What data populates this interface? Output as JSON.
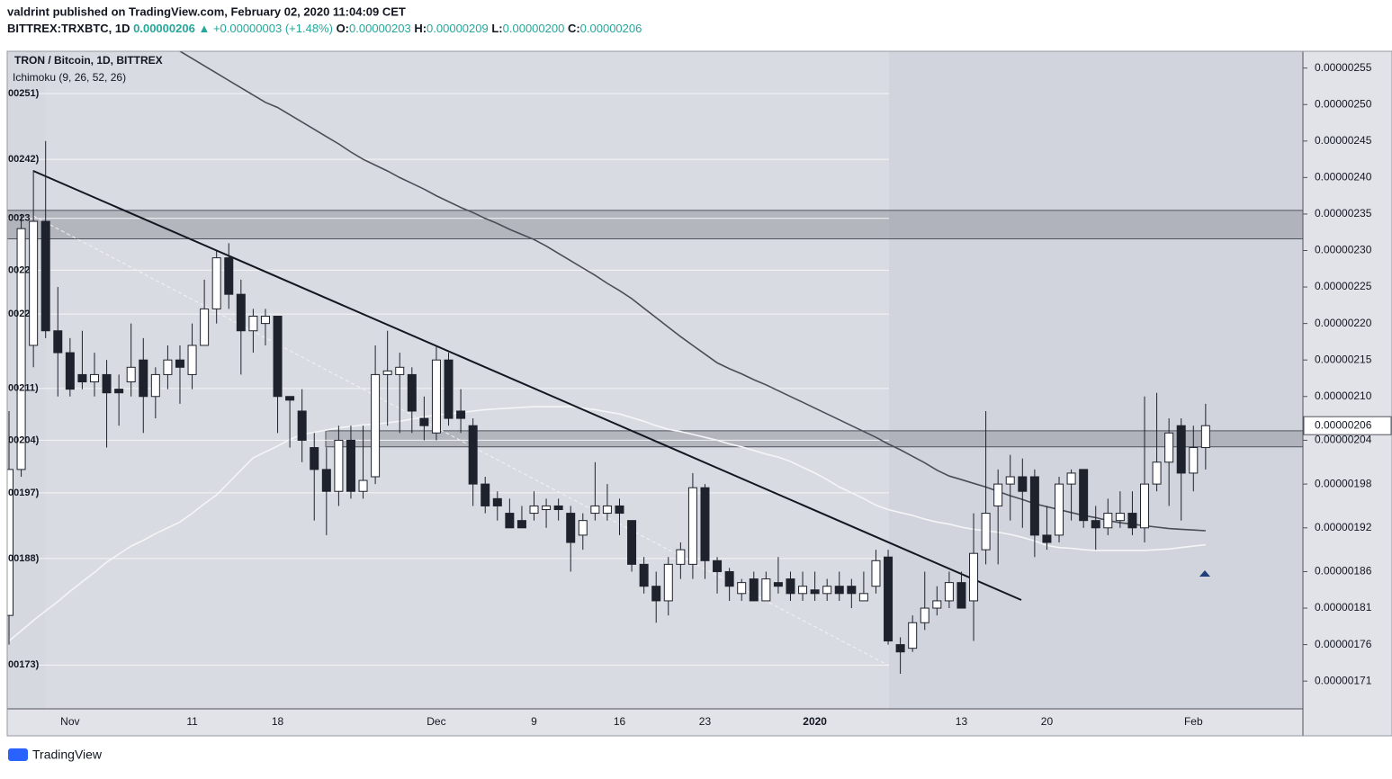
{
  "header": {
    "publisher": "valdrint published on TradingView.com, February 02, 2020 11:04:09 CET",
    "symbol": "BITTREX:TRXBTC, 1D",
    "last": "0.00000206",
    "arrow": "▲",
    "change": "+0.00000003 (+1.48%)",
    "open_label": "O:",
    "open": "0.00000203",
    "high_label": "H:",
    "high": "0.00000209",
    "low_label": "L:",
    "low": "0.00000200",
    "close_label": "C:",
    "close": "0.00000206"
  },
  "footer": {
    "brand": "TradingView"
  },
  "chart_data": {
    "type": "candlestick",
    "title": "TRON / Bitcoin, 1D, BITTREX",
    "subtitle": "Ichimoku (9, 26, 52, 26)",
    "categories": [
      null,
      null,
      null,
      null,
      null,
      "Nov",
      null,
      null,
      null,
      null,
      null,
      null,
      null,
      null,
      null,
      "11",
      null,
      null,
      null,
      null,
      null,
      null,
      "18",
      null,
      null,
      null,
      null,
      null,
      null,
      null,
      null,
      null,
      null,
      null,
      null,
      "Dec",
      null,
      null,
      null,
      null,
      null,
      null,
      null,
      "9",
      null,
      null,
      null,
      null,
      null,
      null,
      "16",
      null,
      null,
      null,
      null,
      null,
      null,
      "23",
      null,
      null,
      null,
      null,
      null,
      null,
      null,
      null,
      "2020",
      null,
      null,
      null,
      null,
      null,
      null,
      null,
      null,
      null,
      null,
      null,
      "13",
      null,
      null,
      null,
      null,
      null,
      null,
      "20",
      null,
      null,
      null,
      null,
      null,
      null,
      null,
      null,
      null,
      null,
      null,
      "Feb",
      null
    ],
    "open": [
      1.8e-06,
      2e-06,
      2.17e-06,
      2.34e-06,
      2.19e-06,
      2.16e-06,
      2.13e-06,
      2.12e-06,
      2.13e-06,
      2.11e-06,
      2.12e-06,
      2.15e-06,
      2.1e-06,
      2.13e-06,
      2.15e-06,
      2.13e-06,
      2.17e-06,
      2.22e-06,
      2.29e-06,
      2.24e-06,
      2.19e-06,
      2.2e-06,
      2.21e-06,
      2.1e-06,
      2.08e-06,
      2.03e-06,
      2e-06,
      1.97e-06,
      2.04e-06,
      1.97e-06,
      1.99e-06,
      2.13e-06,
      2.13e-06,
      2.13e-06,
      2.07e-06,
      2.05e-06,
      2.15e-06,
      2.08e-06,
      2.06e-06,
      1.98e-06,
      1.96e-06,
      1.94e-06,
      1.93e-06,
      1.94e-06,
      1.945e-06,
      1.95e-06,
      1.94e-06,
      1.91e-06,
      1.94e-06,
      1.94e-06,
      1.95e-06,
      1.93e-06,
      1.87e-06,
      1.84e-06,
      1.82e-06,
      1.87e-06,
      1.87e-06,
      1.975e-06,
      1.875e-06,
      1.86e-06,
      1.83e-06,
      1.85e-06,
      1.82e-06,
      1.845e-06,
      1.85e-06,
      1.83e-06,
      1.835e-06,
      1.83e-06,
      1.84e-06,
      1.84e-06,
      1.82e-06,
      1.84e-06,
      1.88e-06,
      1.76e-06,
      1.755e-06,
      1.79e-06,
      1.81e-06,
      1.82e-06,
      1.845e-06,
      1.82e-06,
      1.89e-06,
      1.95e-06,
      1.98e-06,
      1.99e-06,
      1.99e-06,
      1.91e-06,
      1.91e-06,
      1.98e-06,
      2e-06,
      1.93e-06,
      1.92e-06,
      1.93e-06,
      1.94e-06,
      1.92e-06,
      1.98e-06,
      2.01e-06,
      2.06e-06,
      1.995e-06,
      2.03e-06
    ],
    "high": [
      2.08e-06,
      2.35e-06,
      2.41e-06,
      2.45e-06,
      2.25e-06,
      2.18e-06,
      2.19e-06,
      2.16e-06,
      2.15e-06,
      2.13e-06,
      2.2e-06,
      2.18e-06,
      2.14e-06,
      2.17e-06,
      2.17e-06,
      2.2e-06,
      2.26e-06,
      2.3e-06,
      2.31e-06,
      2.26e-06,
      2.22e-06,
      2.22e-06,
      2.21e-06,
      2.1e-06,
      2.11e-06,
      2.05e-06,
      2.03e-06,
      2.06e-06,
      2.06e-06,
      2.06e-06,
      2.17e-06,
      2.19e-06,
      2.16e-06,
      2.14e-06,
      2.1e-06,
      2.17e-06,
      2.16e-06,
      2.11e-06,
      2.07e-06,
      1.99e-06,
      1.97e-06,
      1.96e-06,
      1.95e-06,
      1.97e-06,
      1.96e-06,
      1.96e-06,
      1.95e-06,
      1.94e-06,
      2.01e-06,
      1.98e-06,
      1.96e-06,
      1.93e-06,
      1.88e-06,
      1.86e-06,
      1.88e-06,
      1.9e-06,
      1.995e-06,
      1.98e-06,
      1.88e-06,
      1.865e-06,
      1.85e-06,
      1.86e-06,
      1.86e-06,
      1.88e-06,
      1.86e-06,
      1.86e-06,
      1.86e-06,
      1.85e-06,
      1.86e-06,
      1.85e-06,
      1.86e-06,
      1.89e-06,
      1.89e-06,
      1.77e-06,
      1.8e-06,
      1.86e-06,
      1.84e-06,
      1.86e-06,
      1.86e-06,
      1.94e-06,
      2.08e-06,
      2e-06,
      2.02e-06,
      2.015e-06,
      2e-06,
      1.95e-06,
      1.99e-06,
      2e-06,
      2e-06,
      1.95e-06,
      1.96e-06,
      1.97e-06,
      1.97e-06,
      2.1e-06,
      2.105e-06,
      2.07e-06,
      2.07e-06,
      2.06e-06,
      2.09e-06
    ],
    "low": [
      1.76e-06,
      1.99e-06,
      2.14e-06,
      2.18e-06,
      2.1e-06,
      2.1e-06,
      2.11e-06,
      2.1e-06,
      2.03e-06,
      2.06e-06,
      2.1e-06,
      2.05e-06,
      2.07e-06,
      2.11e-06,
      2.09e-06,
      2.11e-06,
      2.17e-06,
      2.2e-06,
      2.22e-06,
      2.13e-06,
      2.16e-06,
      2.17e-06,
      2.05e-06,
      2.03e-06,
      2.01e-06,
      1.93e-06,
      1.91e-06,
      1.95e-06,
      1.96e-06,
      1.96e-06,
      1.98e-06,
      2.06e-06,
      2.05e-06,
      2.05e-06,
      2.04e-06,
      2.04e-06,
      2.06e-06,
      2.05e-06,
      1.95e-06,
      1.94e-06,
      1.93e-06,
      1.92e-06,
      1.92e-06,
      1.93e-06,
      1.92e-06,
      1.93e-06,
      1.86e-06,
      1.89e-06,
      1.93e-06,
      1.93e-06,
      1.91e-06,
      1.86e-06,
      1.83e-06,
      1.79e-06,
      1.8e-06,
      1.85e-06,
      1.85e-06,
      1.85e-06,
      1.83e-06,
      1.82e-06,
      1.82e-06,
      1.82e-06,
      1.82e-06,
      1.83e-06,
      1.82e-06,
      1.82e-06,
      1.82e-06,
      1.82e-06,
      1.82e-06,
      1.81e-06,
      1.82e-06,
      1.83e-06,
      1.76e-06,
      1.72e-06,
      1.75e-06,
      1.78e-06,
      1.8e-06,
      1.81e-06,
      1.81e-06,
      1.765e-06,
      1.87e-06,
      1.87e-06,
      1.93e-06,
      1.92e-06,
      1.88e-06,
      1.89e-06,
      1.9e-06,
      1.93e-06,
      1.92e-06,
      1.89e-06,
      1.91e-06,
      1.92e-06,
      1.91e-06,
      1.9e-06,
      1.97e-06,
      1.95e-06,
      1.93e-06,
      1.97e-06,
      2e-06
    ],
    "close": [
      2e-06,
      2.33e-06,
      2.34e-06,
      2.19e-06,
      2.16e-06,
      2.11e-06,
      2.12e-06,
      2.13e-06,
      2.105e-06,
      2.105e-06,
      2.14e-06,
      2.1e-06,
      2.13e-06,
      2.15e-06,
      2.14e-06,
      2.17e-06,
      2.22e-06,
      2.29e-06,
      2.24e-06,
      2.19e-06,
      2.21e-06,
      2.21e-06,
      2.1e-06,
      2.095e-06,
      2.04e-06,
      2e-06,
      1.97e-06,
      2.04e-06,
      1.97e-06,
      1.985e-06,
      2.13e-06,
      2.135e-06,
      2.14e-06,
      2.08e-06,
      2.06e-06,
      2.15e-06,
      2.07e-06,
      2.07e-06,
      1.98e-06,
      1.95e-06,
      1.95e-06,
      1.92e-06,
      1.92e-06,
      1.95e-06,
      1.95e-06,
      1.945e-06,
      1.9e-06,
      1.93e-06,
      1.95e-06,
      1.95e-06,
      1.94e-06,
      1.87e-06,
      1.84e-06,
      1.82e-06,
      1.87e-06,
      1.89e-06,
      1.975e-06,
      1.875e-06,
      1.86e-06,
      1.84e-06,
      1.845e-06,
      1.82e-06,
      1.85e-06,
      1.84e-06,
      1.83e-06,
      1.84e-06,
      1.83e-06,
      1.84e-06,
      1.83e-06,
      1.83e-06,
      1.83e-06,
      1.875e-06,
      1.765e-06,
      1.75e-06,
      1.79e-06,
      1.81e-06,
      1.82e-06,
      1.845e-06,
      1.81e-06,
      1.885e-06,
      1.94e-06,
      1.98e-06,
      1.99e-06,
      1.97e-06,
      1.91e-06,
      1.9e-06,
      1.98e-06,
      1.995e-06,
      1.93e-06,
      1.92e-06,
      1.94e-06,
      1.94e-06,
      1.92e-06,
      1.98e-06,
      2.01e-06,
      2.05e-06,
      1.995e-06,
      2.03e-06,
      2.06e-06
    ],
    "up_color": "#ffffff",
    "down_color": "#1e222d",
    "ma_lines": [
      {
        "color": "#4a4d55",
        "values": [
          null,
          null,
          null,
          null,
          null,
          null,
          null,
          null,
          null,
          null,
          null,
          null,
          null,
          null,
          2.573e-06,
          2.563e-06,
          2.553e-06,
          2.543e-06,
          2.533e-06,
          2.523e-06,
          2.513e-06,
          2.503e-06,
          2.496e-06,
          2.486e-06,
          2.476e-06,
          2.466e-06,
          2.456e-06,
          2.446e-06,
          2.435e-06,
          2.425e-06,
          2.417e-06,
          2.409e-06,
          2.4e-06,
          2.392e-06,
          2.384e-06,
          2.375e-06,
          2.367e-06,
          2.359e-06,
          2.352e-06,
          2.344e-06,
          2.337e-06,
          2.329e-06,
          2.322e-06,
          2.315e-06,
          2.306e-06,
          2.296e-06,
          2.286e-06,
          2.276e-06,
          2.266e-06,
          2.255e-06,
          2.245e-06,
          2.234e-06,
          2.221e-06,
          2.208e-06,
          2.195e-06,
          2.182e-06,
          2.17e-06,
          2.158e-06,
          2.146e-06,
          2.138e-06,
          2.131e-06,
          2.123e-06,
          2.116e-06,
          2.108e-06,
          2.1e-06,
          2.092e-06,
          2.084e-06,
          2.076e-06,
          2.068e-06,
          2.06e-06,
          2.052e-06,
          2.044e-06,
          2.035e-06,
          2.027e-06,
          2.018e-06,
          2.009e-06,
          1.999e-06,
          1.991e-06,
          1.986e-06,
          1.981e-06,
          1.976e-06,
          1.97e-06,
          1.964e-06,
          1.959e-06,
          1.953e-06,
          1.949e-06,
          1.945e-06,
          1.941e-06,
          1.937e-06,
          1.934e-06,
          1.93e-06,
          1.927e-06,
          1.925e-06,
          1.923e-06,
          1.921e-06,
          1.919e-06,
          1.918e-06,
          1.917e-06,
          1.916e-06
        ]
      },
      {
        "color": "#f4f5f7",
        "values": [
          1.765e-06,
          1.779e-06,
          1.793e-06,
          1.806e-06,
          1.819e-06,
          1.833e-06,
          1.846e-06,
          1.859e-06,
          1.873e-06,
          1.884e-06,
          1.895e-06,
          1.903e-06,
          1.912e-06,
          1.92e-06,
          1.928e-06,
          1.94e-06,
          1.953e-06,
          1.965e-06,
          1.982e-06,
          1.999e-06,
          2.016e-06,
          2.024e-06,
          2.032e-06,
          2.041e-06,
          2.048e-06,
          2.051e-06,
          2.054e-06,
          2.057e-06,
          2.059e-06,
          2.061e-06,
          2.062e-06,
          2.064e-06,
          2.066e-06,
          2.069e-06,
          2.072e-06,
          2.075e-06,
          2.076e-06,
          2.078e-06,
          2.08e-06,
          2.082e-06,
          2.083e-06,
          2.084e-06,
          2.085e-06,
          2.086e-06,
          2.086e-06,
          2.086e-06,
          2.086e-06,
          2.084e-06,
          2.082e-06,
          2.079e-06,
          2.076e-06,
          2.071e-06,
          2.066e-06,
          2.06e-06,
          2.055e-06,
          2.052e-06,
          2.048e-06,
          2.044e-06,
          2.04e-06,
          2.035e-06,
          2.031e-06,
          2.026e-06,
          2.021e-06,
          2.017e-06,
          2.011e-06,
          2.003e-06,
          1.995e-06,
          1.986e-06,
          1.976e-06,
          1.968e-06,
          1.96e-06,
          1.951e-06,
          1.945e-06,
          1.941e-06,
          1.937e-06,
          1.932e-06,
          1.928e-06,
          1.925e-06,
          1.921e-06,
          1.918e-06,
          1.916e-06,
          1.914e-06,
          1.911e-06,
          1.907e-06,
          1.902e-06,
          1.896e-06,
          1.893e-06,
          1.892e-06,
          1.89e-06,
          1.889e-06,
          1.889e-06,
          1.889e-06,
          1.889e-06,
          1.889e-06,
          1.89e-06,
          1.891e-06,
          1.893e-06,
          1.895e-06,
          1.897e-06
        ]
      }
    ],
    "zones": [
      {
        "low": 2.316e-06,
        "high": 2.355e-06
      },
      {
        "low": 2.031e-06,
        "high": 2.053e-06
      }
    ],
    "levels": [
      {
        "value": 2.515e-06,
        "label": "00251)"
      },
      {
        "value": 2.425e-06,
        "label": "00242)"
      },
      {
        "value": 2.344e-06,
        "label": "0023"
      },
      {
        "value": 2.273e-06,
        "label": "0022"
      },
      {
        "value": 2.213e-06,
        "label": "0022"
      },
      {
        "value": 2.111e-06,
        "label": "00211)"
      },
      {
        "value": 2.04e-06,
        "label": "00204)"
      },
      {
        "value": 1.968e-06,
        "label": "00197)"
      },
      {
        "value": 1.878e-06,
        "label": "00188)"
      },
      {
        "value": 1.732e-06,
        "label": "00173)"
      }
    ],
    "last_price": {
      "value": 2.06e-06,
      "label": "0.00000206"
    },
    "ylim": [
      1.672e-06,
      2.573e-06
    ],
    "yticks": [
      {
        "value": 2.55e-06,
        "label": "0.00000255"
      },
      {
        "value": 2.5e-06,
        "label": "0.00000250"
      },
      {
        "value": 2.45e-06,
        "label": "0.00000245"
      },
      {
        "value": 2.4e-06,
        "label": "0.00000240"
      },
      {
        "value": 2.35e-06,
        "label": "0.00000235"
      },
      {
        "value": 2.3e-06,
        "label": "0.00000230"
      },
      {
        "value": 2.25e-06,
        "label": "0.00000225"
      },
      {
        "value": 2.2e-06,
        "label": "0.00000220"
      },
      {
        "value": 2.15e-06,
        "label": "0.00000215"
      },
      {
        "value": 2.1e-06,
        "label": "0.00000210"
      },
      {
        "value": 2.04e-06,
        "label": "0.00000204"
      },
      {
        "value": 1.98e-06,
        "label": "0.00000198"
      },
      {
        "value": 1.92e-06,
        "label": "0.00000192"
      },
      {
        "value": 1.86e-06,
        "label": "0.00000186"
      },
      {
        "value": 1.81e-06,
        "label": "0.00000181"
      },
      {
        "value": 1.76e-06,
        "label": "0.00000176"
      },
      {
        "value": 1.71e-06,
        "label": "0.00000171"
      }
    ]
  }
}
